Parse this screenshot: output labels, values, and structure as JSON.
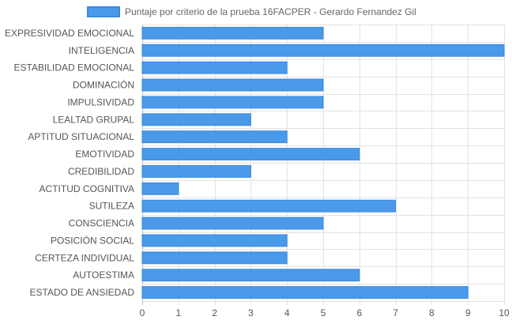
{
  "chart_data": {
    "type": "bar",
    "orientation": "horizontal",
    "legend_position": "top",
    "grid": true,
    "categories": [
      "EXPRESIVIDAD EMOCIONAL",
      "INTELIGENCIA",
      "ESTABILIDAD EMOCIONAL",
      "DOMINACIÓN",
      "IMPULSIVIDAD",
      "LEALTAD GRUPAL",
      "APTITUD SITUACIONAL",
      "EMOTIVIDAD",
      "CREDIBILIDAD",
      "ACTITUD COGNITIVA",
      "SUTILEZA",
      "CONSCIENCIA",
      "POSICIÓN SOCIAL",
      "CERTEZA INDIVIDUAL",
      "AUTOESTIMA",
      "ESTADO DE ANSIEDAD"
    ],
    "series": [
      {
        "name": "Puntaje por criterio de la prueba 16FACPER - Gerardo Fernandez Gil",
        "values": [
          5,
          10,
          4,
          5,
          5,
          3,
          4,
          6,
          3,
          1,
          7,
          5,
          4,
          4,
          6,
          9
        ],
        "color": "#4a9ae9",
        "border_color": "#3a87e0"
      }
    ],
    "xlim": [
      0,
      10
    ],
    "xticks": [
      "0",
      "1",
      "2",
      "3",
      "4",
      "5",
      "6",
      "7",
      "8",
      "9",
      "10"
    ],
    "grid_color": "#e3e3e3"
  }
}
